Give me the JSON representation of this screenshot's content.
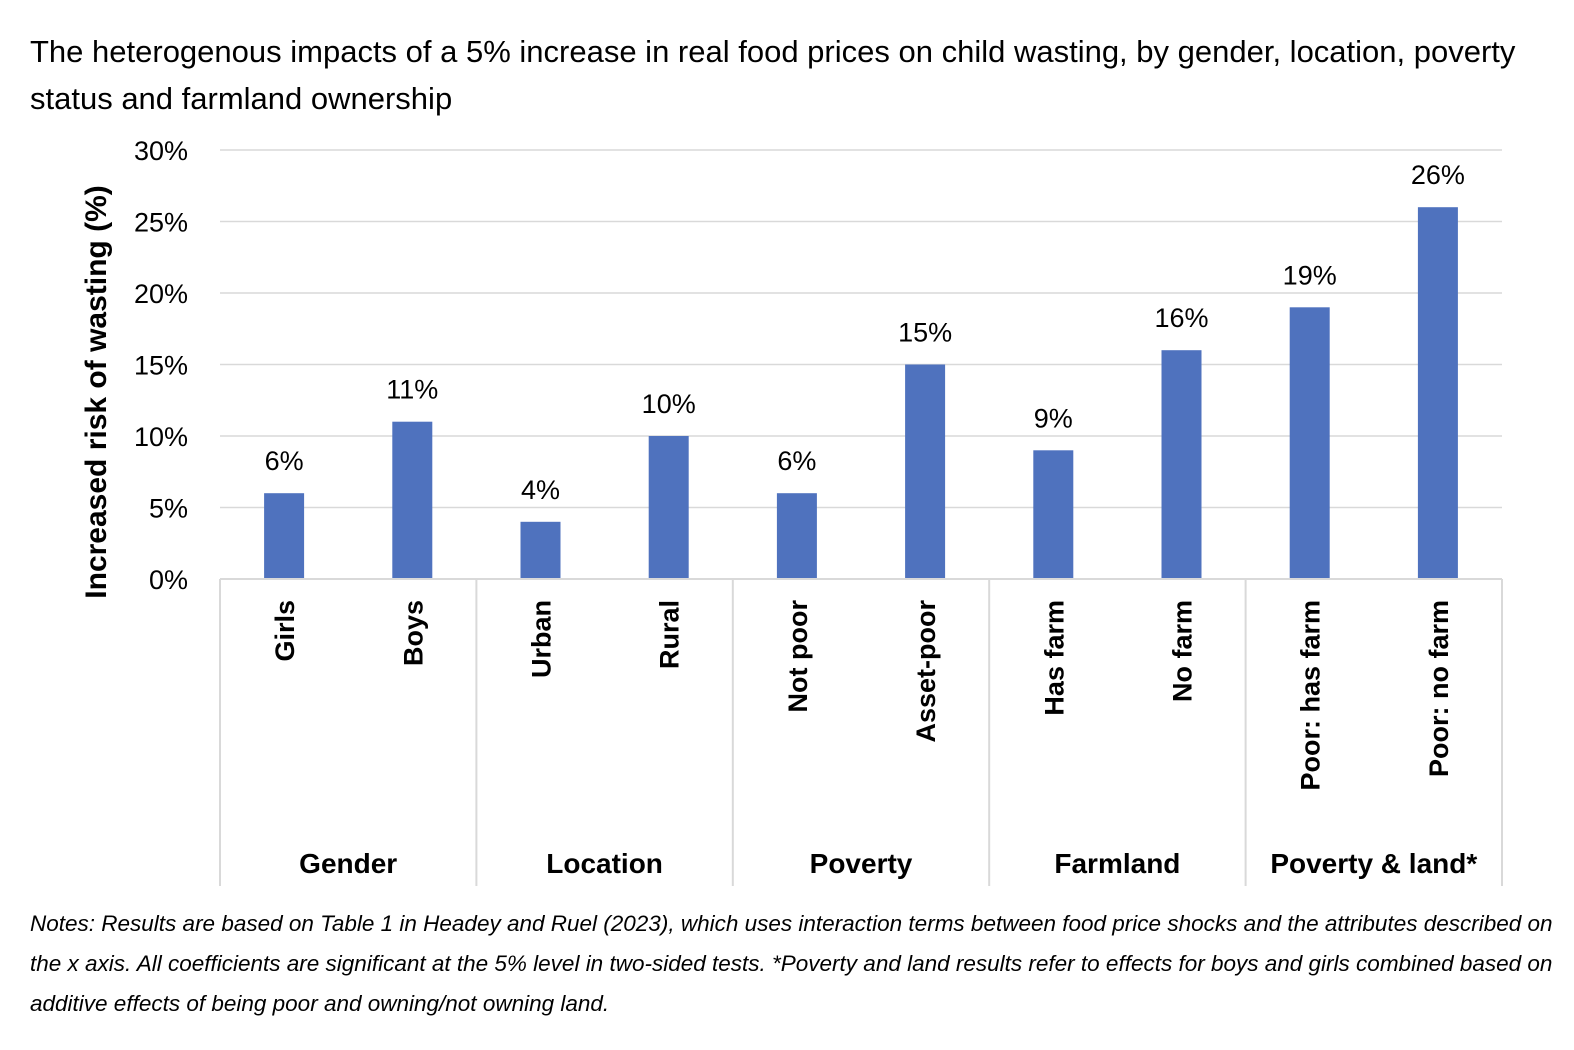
{
  "chart_data": {
    "type": "bar",
    "title": "The heterogenous impacts of a 5% increase in real food prices on child wasting, by gender, location, poverty status and farmland ownership",
    "ylabel": "Increased risk of wasting (%)",
    "ylim": [
      0,
      30
    ],
    "y_ticks": [
      "0%",
      "5%",
      "10%",
      "15%",
      "20%",
      "25%",
      "30%"
    ],
    "y_tick_values": [
      0,
      5,
      10,
      15,
      20,
      25,
      30
    ],
    "grid": true,
    "bar_color": "#4F72BE",
    "categories": [
      "Girls",
      "Boys",
      "Urban",
      "Rural",
      "Not poor",
      "Asset-poor",
      "Has farm",
      "No farm",
      "Poor: has farm",
      "Poor: no farm"
    ],
    "values": [
      6,
      11,
      4,
      10,
      6,
      15,
      9,
      16,
      19,
      26
    ],
    "data_labels": [
      "6%",
      "11%",
      "4%",
      "10%",
      "6%",
      "15%",
      "9%",
      "16%",
      "19%",
      "26%"
    ],
    "groups": [
      {
        "name": "Gender",
        "categories": [
          "Girls",
          "Boys"
        ]
      },
      {
        "name": "Location",
        "categories": [
          "Urban",
          "Rural"
        ]
      },
      {
        "name": "Poverty",
        "categories": [
          "Not poor",
          "Asset-poor"
        ]
      },
      {
        "name": "Farmland",
        "categories": [
          "Has farm",
          "No farm"
        ]
      },
      {
        "name": "Poverty & land*",
        "categories": [
          "Poor: has farm",
          "Poor: no farm"
        ]
      }
    ]
  },
  "notes": "Notes: Results are based on Table 1 in Headey and Ruel (2023), which uses interaction terms between food price shocks and the attributes described on the x axis. All coefficients are significant at the 5% level in two-sided tests. *Poverty and land results refer to effects for boys and girls combined based on additive effects of being poor and owning/not owning land."
}
